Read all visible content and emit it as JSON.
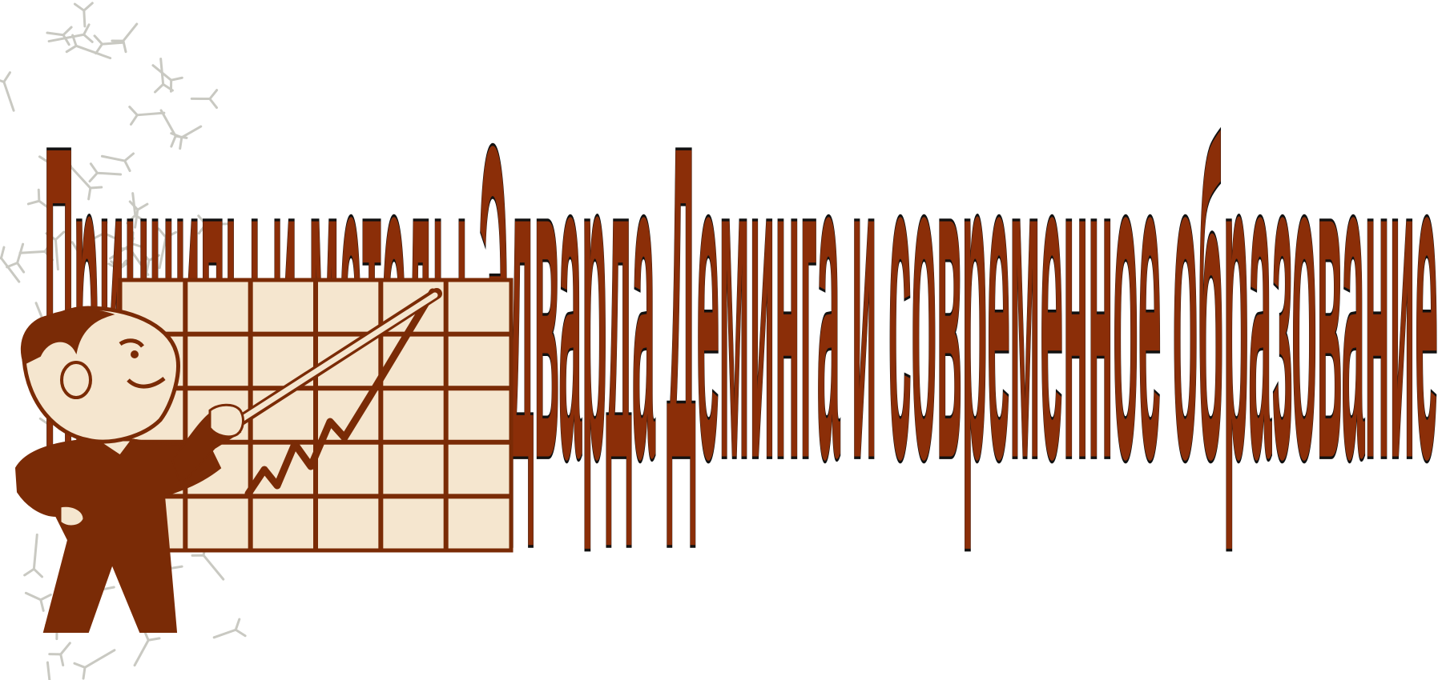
{
  "slide": {
    "title": "Принципы и методы Эдварда Деминга  и современное образование",
    "title_color": "#8B2E08",
    "title_outline_color": "#111111",
    "background_color": "#ffffff",
    "pattern_color": "#c9c9c2",
    "background_pattern_icon": "molecule-pattern-icon",
    "illustration": {
      "icon": "presenter-with-pointer-and-rising-chart-icon",
      "ink_color": "#7A2B06",
      "board_color": "#F5E6CF"
    }
  }
}
